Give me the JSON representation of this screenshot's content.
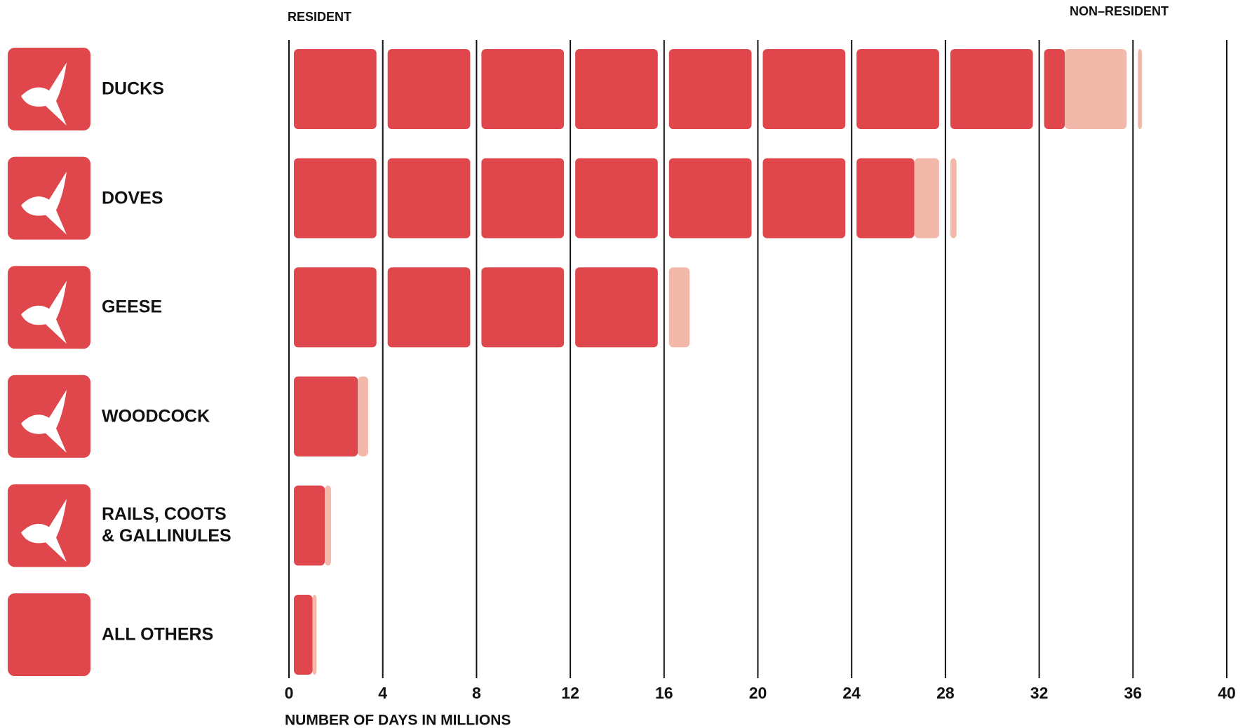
{
  "chart_data": {
    "type": "bar",
    "orientation": "horizontal",
    "stacked": true,
    "categories": [
      "DUCKS",
      "DOVES",
      "GEESE",
      "WOODCOCK",
      "RAILS, COOTS & GALLINULES",
      "ALL OTHERS"
    ],
    "series": [
      {
        "name": "RESIDENT",
        "color": "#e0474c",
        "values": [
          33,
          26.8,
          16,
          3.1,
          1.5,
          0.9
        ]
      },
      {
        "name": "NON–RESIDENT",
        "color": "#f2b9aa",
        "values": [
          3.2,
          1.5,
          1.0,
          0.5,
          0.3,
          0.2
        ]
      }
    ],
    "xlim": [
      0,
      40
    ],
    "xticks": [
      0,
      4,
      8,
      12,
      16,
      20,
      24,
      28,
      32,
      36,
      40
    ],
    "x_label": "NUMBER OF DAYS IN MILLIONS",
    "grid": true
  }
}
